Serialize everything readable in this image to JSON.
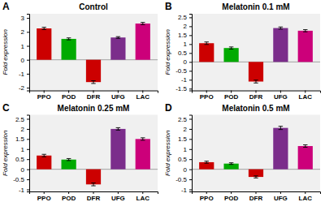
{
  "chart_data": [
    {
      "type": "bar",
      "title": "Control",
      "annotations": [
        "A"
      ],
      "ylabel": "Fold expression",
      "categories": [
        "PPO",
        "POD",
        "DFR",
        "UFG",
        "LAC"
      ],
      "values": [
        2.25,
        1.5,
        -1.6,
        1.6,
        2.6
      ],
      "errors": [
        0.08,
        0.07,
        0.1,
        0.06,
        0.08
      ],
      "colors": [
        "#cc0000",
        "#00aa00",
        "#cc0000",
        "#7b2d8b",
        "#cc007a"
      ],
      "ylim": [
        -2.2,
        3.3
      ],
      "yticks": [
        -2,
        -1,
        0,
        1,
        2,
        3
      ],
      "grid": false
    },
    {
      "type": "bar",
      "title": "Melatonin 0.1 mM",
      "annotations": [
        "B"
      ],
      "ylabel": "Fold expression",
      "categories": [
        "PPO",
        "POD",
        "DFR",
        "UFG",
        "LAC"
      ],
      "values": [
        1.05,
        0.78,
        -1.1,
        1.9,
        1.75
      ],
      "errors": [
        0.07,
        0.06,
        0.08,
        0.06,
        0.06
      ],
      "colors": [
        "#cc0000",
        "#00aa00",
        "#cc0000",
        "#7b2d8b",
        "#cc007a"
      ],
      "ylim": [
        -1.6,
        2.7
      ],
      "yticks": [
        -1.5,
        -1,
        -0.5,
        0,
        0.5,
        1,
        1.5,
        2,
        2.5
      ],
      "grid": false
    },
    {
      "type": "bar",
      "title": "Melatonin 0.25 mM",
      "annotations": [
        "C"
      ],
      "ylabel": "Fold expression",
      "categories": [
        "PPO",
        "POD",
        "DFR",
        "UFG",
        "LAC"
      ],
      "values": [
        0.68,
        0.48,
        -0.75,
        2.0,
        1.5
      ],
      "errors": [
        0.06,
        0.05,
        0.07,
        0.06,
        0.06
      ],
      "colors": [
        "#cc0000",
        "#00aa00",
        "#cc0000",
        "#7b2d8b",
        "#cc007a"
      ],
      "ylim": [
        -1.1,
        2.7
      ],
      "yticks": [
        -1,
        -0.5,
        0,
        0.5,
        1,
        1.5,
        2,
        2.5
      ],
      "grid": false
    },
    {
      "type": "bar",
      "title": "Melatonin 0.5 mM",
      "annotations": [
        "D"
      ],
      "ylabel": "Fold expression",
      "categories": [
        "PPO",
        "POD",
        "DFR",
        "UFG",
        "LAC"
      ],
      "values": [
        0.35,
        0.28,
        -0.38,
        2.05,
        1.15
      ],
      "errors": [
        0.05,
        0.04,
        0.05,
        0.08,
        0.06
      ],
      "colors": [
        "#cc0000",
        "#00aa00",
        "#cc0000",
        "#7b2d8b",
        "#cc007a"
      ],
      "ylim": [
        -1.1,
        2.7
      ],
      "yticks": [
        -1,
        -0.5,
        0,
        0.5,
        1,
        1.5,
        2,
        2.5
      ],
      "grid": false
    }
  ]
}
